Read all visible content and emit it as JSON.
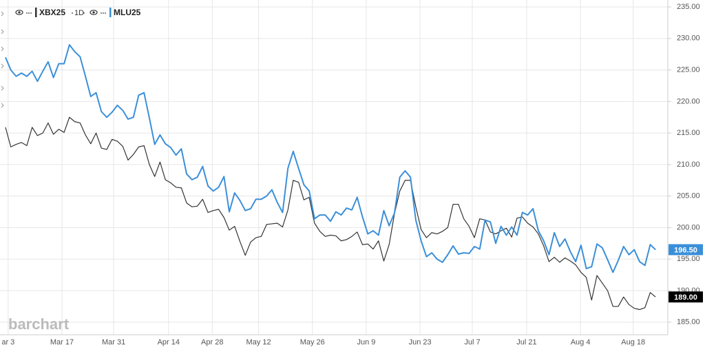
{
  "chart_data": {
    "type": "line",
    "brand": "barchart",
    "interval": "1D",
    "xlim": [
      -1.03,
      124.3
    ],
    "ylim": [
      183.0,
      236.1
    ],
    "grid": true,
    "xticks": [
      {
        "value": 0.5,
        "label": "ar 3"
      },
      {
        "value": 10.6,
        "label": "Mar 17"
      },
      {
        "value": 20.3,
        "label": "Mar 31"
      },
      {
        "value": 30.6,
        "label": "Apr 14"
      },
      {
        "value": 38.8,
        "label": "Apr 28"
      },
      {
        "value": 47.5,
        "label": "May 12"
      },
      {
        "value": 57.6,
        "label": "May 26"
      },
      {
        "value": 67.7,
        "label": "Jun 9"
      },
      {
        "value": 77.8,
        "label": "Jun 23"
      },
      {
        "value": 87.6,
        "label": "Jul 7"
      },
      {
        "value": 97.8,
        "label": "Jul 21"
      },
      {
        "value": 107.9,
        "label": "Aug 4"
      },
      {
        "value": 117.8,
        "label": "Aug 18"
      }
    ],
    "yticks": [
      {
        "value": 185,
        "label": "185.00"
      },
      {
        "value": 190,
        "label": "190.00"
      },
      {
        "value": 195,
        "label": "195.00"
      },
      {
        "value": 200,
        "label": "200.00"
      },
      {
        "value": 205,
        "label": "205.00"
      },
      {
        "value": 210,
        "label": "210.00"
      },
      {
        "value": 215,
        "label": "215.00"
      },
      {
        "value": 220,
        "label": "220.00"
      },
      {
        "value": 225,
        "label": "225.00"
      },
      {
        "value": 230,
        "label": "230.00"
      },
      {
        "value": 235,
        "label": "235.00"
      }
    ],
    "series": [
      {
        "name": "XBX25",
        "color": "#333333",
        "last_value_label": "189.00",
        "values": [
          215.9,
          212.8,
          213.2,
          213.5,
          213,
          215.9,
          214.6,
          215,
          216.6,
          214.8,
          215.6,
          215.1,
          217.5,
          216.8,
          216.6,
          214.7,
          213.3,
          215,
          212.6,
          212.4,
          214,
          213.7,
          212.9,
          210.7,
          211.6,
          212.8,
          213,
          210,
          208.1,
          210.4,
          207.6,
          207.1,
          206.4,
          206.3,
          203.9,
          203.3,
          203.4,
          204.5,
          202.4,
          202.7,
          202.9,
          201.6,
          199.6,
          200.2,
          197.8,
          195.6,
          197.7,
          198.4,
          198.6,
          200.5,
          200.6,
          200.7,
          200.1,
          202.8,
          207.5,
          207.2,
          204.4,
          204.8,
          200.7,
          199.4,
          198.6,
          198.8,
          198.7,
          197.9,
          198.1,
          198.6,
          199.3,
          197.3,
          197.4,
          196.6,
          197.9,
          194.7,
          197.3,
          202.2,
          205.8,
          207.5,
          207.5,
          203.3,
          199.7,
          198.4,
          199.2,
          199,
          199.4,
          200,
          203.7,
          203.7,
          201.4,
          200.2,
          198.4,
          201.4,
          201.2,
          199.3,
          199,
          199.5,
          199.9,
          198.5,
          201.5,
          201.7,
          200.7,
          200.1,
          199,
          197.1,
          194.6,
          195.3,
          194.5,
          195.2,
          194.7,
          194.1,
          192.9,
          192.1,
          188.5,
          192.4,
          191.2,
          190,
          187.5,
          187.5,
          189,
          187.8,
          187.2,
          187,
          187.3,
          189.7,
          189
        ]
      },
      {
        "name": "MLU25",
        "color": "#3a8fd9",
        "last_value_label": "196.50",
        "values": [
          227,
          225,
          224,
          224.5,
          224,
          224.8,
          223.2,
          224.8,
          226.3,
          223.8,
          226,
          226,
          229,
          227.9,
          227.1,
          224,
          220.8,
          221.4,
          218.4,
          217.5,
          218.3,
          219.4,
          218.6,
          217.2,
          217.5,
          221,
          221.4,
          217.4,
          213.2,
          214.7,
          213.3,
          212.7,
          211.5,
          212.5,
          208.5,
          207.6,
          208,
          209.7,
          206.6,
          205.8,
          206.4,
          208.1,
          202.5,
          205.5,
          204.3,
          202.7,
          203,
          204.5,
          204.5,
          205,
          206,
          204,
          202.4,
          209.4,
          212.1,
          209.4,
          206.8,
          205.8,
          201.4,
          202,
          202,
          201,
          202.5,
          202,
          203.1,
          202.8,
          204.8,
          201.7,
          199,
          199.5,
          198.8,
          202.7,
          200.3,
          202.3,
          208,
          209,
          208,
          201.2,
          197.9,
          195.4,
          196,
          195,
          194.5,
          195.7,
          197.1,
          195.8,
          196,
          195.9,
          197,
          196.6,
          201.2,
          200.9,
          197.5,
          200.2,
          198.8,
          200.1,
          198.8,
          202.4,
          202,
          203,
          199.5,
          197.9,
          195.7,
          199.2,
          197,
          198.2,
          196.2,
          194.6,
          197.2,
          193.5,
          193.8,
          197.4,
          196.8,
          194.9,
          192.9,
          194.8,
          197,
          195.7,
          196.5,
          194.6,
          194,
          197.3,
          196.5
        ]
      }
    ]
  }
}
